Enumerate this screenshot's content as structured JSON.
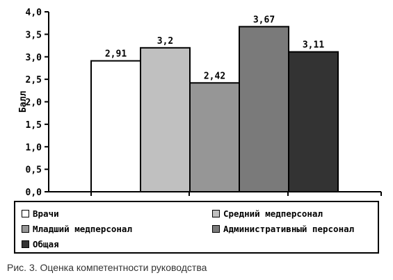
{
  "chart_data": {
    "type": "bar",
    "categories": [
      "Врачи",
      "Средний медперсонал",
      "Младший медперсонал",
      "Административный персонал",
      "Общая"
    ],
    "values": [
      2.91,
      3.2,
      2.42,
      3.67,
      3.11
    ],
    "value_labels": [
      "2,91",
      "3,2",
      "2,42",
      "3,67",
      "3,11"
    ],
    "colors": [
      "#ffffff",
      "#c0c0c0",
      "#969696",
      "#7a7a7a",
      "#333333"
    ],
    "ylabel": "Балл",
    "ylim": [
      0,
      4.0
    ],
    "yticks": [
      "0,0",
      "0,5",
      "1,0",
      "1,5",
      "2,0",
      "2,5",
      "3,0",
      "3,5",
      "4,0"
    ],
    "grid": false,
    "legend_position": "bottom",
    "legend": [
      {
        "label": "Врачи",
        "color": "#ffffff"
      },
      {
        "label": "Средний медперсонал",
        "color": "#c0c0c0"
      },
      {
        "label": "Младший медперсонал",
        "color": "#969696"
      },
      {
        "label": "Административный персонал",
        "color": "#7a7a7a"
      },
      {
        "label": "Общая",
        "color": "#333333"
      }
    ]
  },
  "caption": "Рис. 3. Оценка компетентности руководства"
}
